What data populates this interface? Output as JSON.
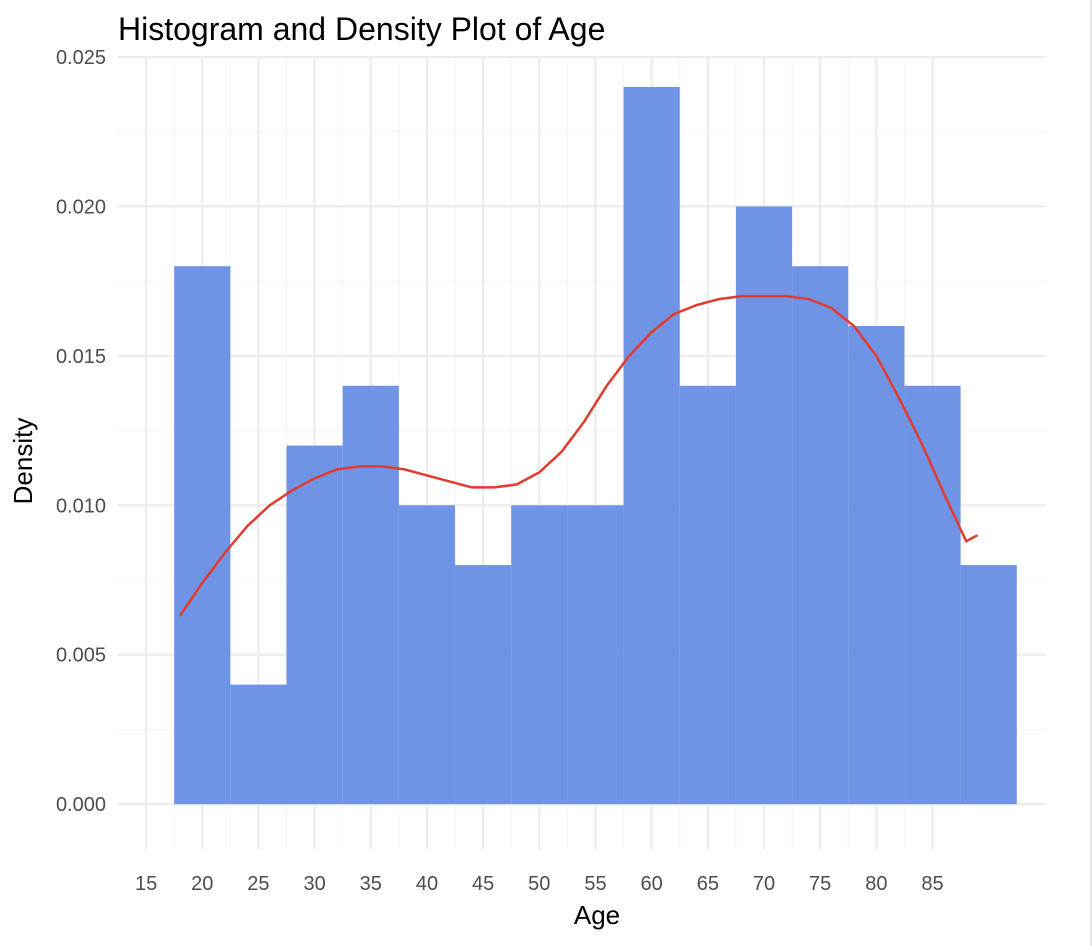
{
  "chart_data": {
    "type": "bar",
    "title": "Histogram and Density Plot of Age",
    "xlabel": "Age",
    "ylabel": "Density",
    "xlim": [
      12.5,
      95.1
    ],
    "ylim": [
      -0.0015,
      0.025
    ],
    "x_ticks": [
      15,
      20,
      25,
      30,
      35,
      40,
      45,
      50,
      55,
      60,
      65,
      70,
      75,
      80,
      85
    ],
    "y_ticks": [
      0.0,
      0.005,
      0.01,
      0.015,
      0.02,
      0.025
    ],
    "y_tick_labels": [
      "0.000",
      "0.005",
      "0.010",
      "0.015",
      "0.020",
      "0.025"
    ],
    "grid": true,
    "bin_width": 5,
    "bins": [
      {
        "start": 17.5,
        "end": 22.5,
        "density": 0.018
      },
      {
        "start": 22.5,
        "end": 27.5,
        "density": 0.004
      },
      {
        "start": 27.5,
        "end": 32.5,
        "density": 0.012
      },
      {
        "start": 32.5,
        "end": 37.5,
        "density": 0.014
      },
      {
        "start": 37.5,
        "end": 42.5,
        "density": 0.01
      },
      {
        "start": 42.5,
        "end": 47.5,
        "density": 0.008
      },
      {
        "start": 47.5,
        "end": 52.5,
        "density": 0.01
      },
      {
        "start": 52.5,
        "end": 57.5,
        "density": 0.01
      },
      {
        "start": 57.5,
        "end": 62.5,
        "density": 0.024
      },
      {
        "start": 62.5,
        "end": 67.5,
        "density": 0.014
      },
      {
        "start": 67.5,
        "end": 72.5,
        "density": 0.02
      },
      {
        "start": 72.5,
        "end": 77.5,
        "density": 0.018
      },
      {
        "start": 77.5,
        "end": 82.5,
        "density": 0.016
      },
      {
        "start": 82.5,
        "end": 87.5,
        "density": 0.014
      },
      {
        "start": 87.5,
        "end": 92.5,
        "density": 0.008
      }
    ],
    "density_curve": {
      "x": [
        18,
        20,
        22,
        24,
        26,
        28,
        30,
        32,
        34,
        36,
        38,
        40,
        42,
        44,
        46,
        48,
        50,
        52,
        54,
        56,
        58,
        60,
        62,
        64,
        66,
        68,
        70,
        72,
        74,
        76,
        78,
        80,
        82,
        84,
        86,
        88,
        89
      ],
      "y": [
        0.0063,
        0.0074,
        0.0084,
        0.0093,
        0.01,
        0.0105,
        0.0109,
        0.0112,
        0.0113,
        0.0113,
        0.0112,
        0.011,
        0.0108,
        0.0106,
        0.0106,
        0.0107,
        0.0111,
        0.0118,
        0.0128,
        0.014,
        0.015,
        0.0158,
        0.0164,
        0.0167,
        0.0169,
        0.017,
        0.017,
        0.017,
        0.0169,
        0.0166,
        0.016,
        0.015,
        0.0136,
        0.0121,
        0.0104,
        0.0088,
        0.009
      ]
    },
    "colors": {
      "bar_fill": "#6f94e5",
      "density_line": "#e23b2e",
      "background": "#ffffff"
    }
  }
}
